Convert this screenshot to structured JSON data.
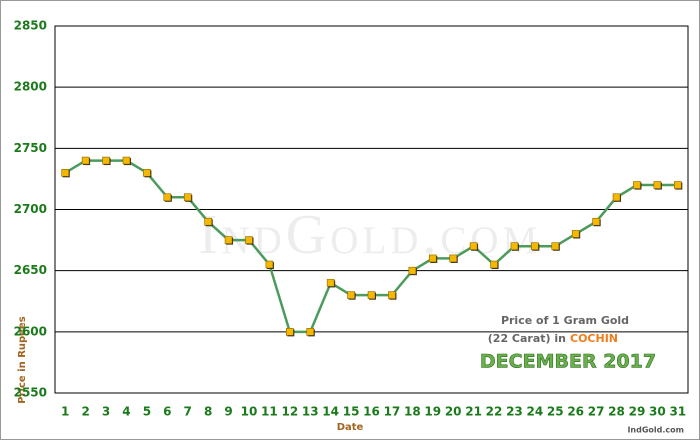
{
  "chart_data": {
    "type": "line",
    "categories": [
      "1",
      "2",
      "3",
      "4",
      "5",
      "6",
      "7",
      "8",
      "9",
      "10",
      "11",
      "12",
      "13",
      "14",
      "15",
      "16",
      "17",
      "18",
      "19",
      "20",
      "21",
      "22",
      "23",
      "24",
      "25",
      "26",
      "27",
      "28",
      "29",
      "30",
      "31"
    ],
    "series": [
      {
        "color": "#4c9a5c",
        "values": [
          2730,
          2740,
          2740,
          2740,
          2730,
          2710,
          2710,
          2690,
          2675,
          2675,
          2655,
          2600,
          2600,
          2640,
          2630,
          2630,
          2630,
          2650,
          2660,
          2660,
          2670,
          2655,
          2670,
          2670,
          2670,
          2680,
          2690,
          2710,
          2720,
          2720,
          2720
        ]
      }
    ],
    "ylim": [
      2550,
      2850
    ],
    "yticks": [
      2550,
      2600,
      2650,
      2700,
      2750,
      2800,
      2850
    ],
    "grid": true,
    "x_label": "Date",
    "y_label": "Price in Rupees",
    "info_line1": "Price of 1 Gram Gold",
    "info_line2": "(22 Carat) in",
    "info_city": "COCHIN",
    "info_month": "DECEMBER 2017",
    "watermark": "IndGold.com",
    "footer": "IndGold.com"
  }
}
